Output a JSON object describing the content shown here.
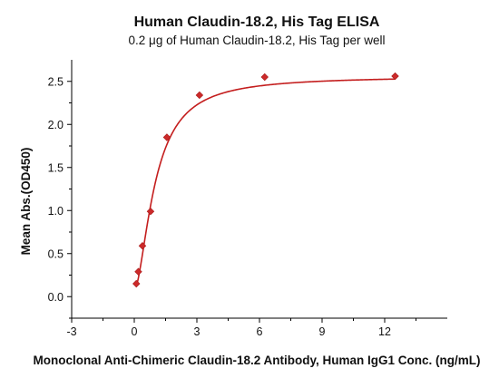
{
  "chart_data": {
    "type": "scatter",
    "title": "Human Claudin-18.2, His Tag ELISA",
    "subtitle": "0.2 μg of Human Claudin-18.2, His Tag per well",
    "xlabel": "Monoclonal Anti-Chimeric Claudin-18.2 Antibody, Human IgG1 Conc. (ng/mL)",
    "ylabel": "Mean Abs.(OD450)",
    "xlim": [
      -3,
      15
    ],
    "ylim": [
      -0.25,
      2.75
    ],
    "x_ticks": [
      "-3",
      "0",
      "3",
      "6",
      "9",
      "12"
    ],
    "y_ticks": [
      "0.0",
      "0.5",
      "1.0",
      "1.5",
      "2.0",
      "2.5"
    ],
    "grid": false,
    "colors": {
      "series": "#cc2a2a",
      "curve": "#c41e1e"
    },
    "series": [
      {
        "marker": "diamond",
        "x": [
          0.098,
          0.195,
          0.391,
          0.781,
          1.563,
          3.125,
          6.25,
          12.5
        ],
        "y": [
          0.15,
          0.29,
          0.59,
          0.99,
          1.85,
          2.34,
          2.55,
          2.56
        ]
      }
    ],
    "fit_curve": {
      "model": "4PL",
      "bottom": 0.07,
      "top": 2.56,
      "ec50": 1.0,
      "hill": 1.7
    }
  }
}
